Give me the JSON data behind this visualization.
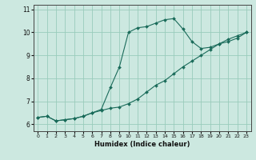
{
  "xlabel": "Humidex (Indice chaleur)",
  "background_color": "#cce8e0",
  "grid_color": "#99ccbb",
  "line_color": "#1a6b5a",
  "xlim": [
    -0.5,
    23.5
  ],
  "ylim": [
    5.7,
    11.2
  ],
  "xticks": [
    0,
    1,
    2,
    3,
    4,
    5,
    6,
    7,
    8,
    9,
    10,
    11,
    12,
    13,
    14,
    15,
    16,
    17,
    18,
    19,
    20,
    21,
    22,
    23
  ],
  "yticks": [
    6,
    7,
    8,
    9,
    10,
    11
  ],
  "line1_x": [
    0,
    1,
    2,
    3,
    4,
    5,
    6,
    7,
    8,
    9,
    10,
    11,
    12,
    13,
    14,
    15,
    16,
    17,
    18,
    19,
    20,
    21,
    22,
    23
  ],
  "line1_y": [
    6.3,
    6.35,
    6.15,
    6.2,
    6.25,
    6.35,
    6.5,
    6.6,
    6.7,
    6.75,
    6.9,
    7.1,
    7.4,
    7.7,
    7.9,
    8.2,
    8.5,
    8.75,
    9.0,
    9.25,
    9.5,
    9.7,
    9.85,
    10.0
  ],
  "line2_x": [
    0,
    1,
    2,
    3,
    4,
    5,
    6,
    7,
    8,
    9,
    10,
    11,
    12,
    13,
    14,
    15,
    16,
    17,
    18,
    19,
    20,
    21,
    22,
    23
  ],
  "line2_y": [
    6.3,
    6.35,
    6.15,
    6.2,
    6.25,
    6.35,
    6.5,
    6.65,
    7.6,
    8.5,
    10.0,
    10.2,
    10.25,
    10.4,
    10.55,
    10.6,
    10.15,
    9.6,
    9.3,
    9.35,
    9.5,
    9.6,
    9.75,
    10.0
  ]
}
